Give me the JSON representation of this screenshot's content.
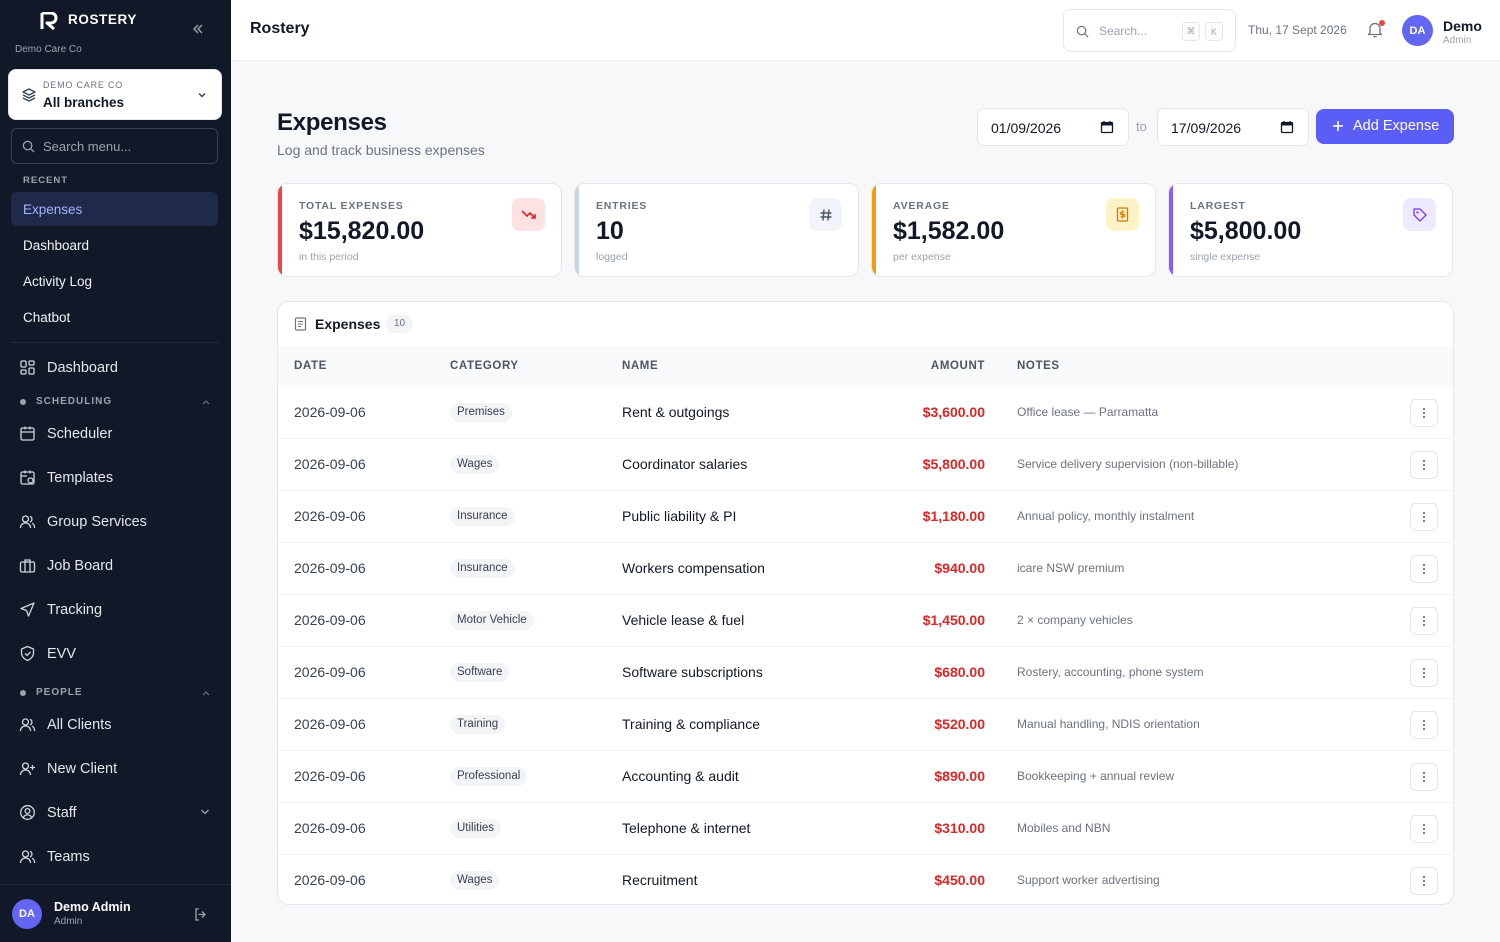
{
  "sidebar": {
    "brand": "ROSTERY",
    "org_sub": "Demo Care Co",
    "org_select": {
      "label": "DEMO CARE CO",
      "value": "All branches"
    },
    "search_placeholder": "Search menu...",
    "recent_label": "RECENT",
    "recent": [
      "Expenses",
      "Dashboard",
      "Activity Log",
      "Chatbot"
    ],
    "nav": {
      "dashboard": "Dashboard",
      "scheduling_label": "SCHEDULING",
      "scheduler": "Scheduler",
      "templates": "Templates",
      "group_services": "Group Services",
      "job_board": "Job Board",
      "tracking": "Tracking",
      "evv": "EVV",
      "people_label": "PEOPLE",
      "all_clients": "All Clients",
      "new_client": "New Client",
      "staff": "Staff",
      "teams": "Teams"
    },
    "user": {
      "initials": "DA",
      "name": "Demo Admin",
      "role": "Admin"
    }
  },
  "topbar": {
    "title": "Rostery",
    "search_placeholder": "Search...",
    "kbd": [
      "⌘",
      "K"
    ],
    "date": "Thu, 17 Sept 2026",
    "user": {
      "initials": "DA",
      "name": "Demo",
      "role": "Admin"
    }
  },
  "page": {
    "title": "Expenses",
    "subtitle": "Log and track business expenses",
    "date_from": "01/09/2026",
    "to_label": "to",
    "date_to": "17/09/2026",
    "add_button": "Add Expense"
  },
  "stats": [
    {
      "label": "TOTAL EXPENSES",
      "value": "$15,820.00",
      "sub": "in this period",
      "accent": "#ef4444",
      "icon": "trend-down-icon"
    },
    {
      "label": "ENTRIES",
      "value": "10",
      "sub": "logged",
      "accent": "#cbd5e1",
      "icon": "hash-icon"
    },
    {
      "label": "AVERAGE",
      "value": "$1,582.00",
      "sub": "per expense",
      "accent": "#f59e0b",
      "icon": "receipt-icon"
    },
    {
      "label": "LARGEST",
      "value": "$5,800.00",
      "sub": "single expense",
      "accent": "#8b5cf6",
      "icon": "tag-icon"
    }
  ],
  "table": {
    "title": "Expenses",
    "count": "10",
    "columns": {
      "date": "DATE",
      "category": "CATEGORY",
      "name": "NAME",
      "amount": "AMOUNT",
      "notes": "NOTES"
    },
    "rows": [
      {
        "date": "2026-09-06",
        "category": "Premises",
        "name": "Rent & outgoings",
        "amount": "$3,600.00",
        "notes": "Office lease — Parramatta"
      },
      {
        "date": "2026-09-06",
        "category": "Wages",
        "name": "Coordinator salaries",
        "amount": "$5,800.00",
        "notes": "Service delivery supervision (non-billable)"
      },
      {
        "date": "2026-09-06",
        "category": "Insurance",
        "name": "Public liability & PI",
        "amount": "$1,180.00",
        "notes": "Annual policy, monthly instalment"
      },
      {
        "date": "2026-09-06",
        "category": "Insurance",
        "name": "Workers compensation",
        "amount": "$940.00",
        "notes": "icare NSW premium"
      },
      {
        "date": "2026-09-06",
        "category": "Motor Vehicle",
        "name": "Vehicle lease & fuel",
        "amount": "$1,450.00",
        "notes": "2 × company vehicles"
      },
      {
        "date": "2026-09-06",
        "category": "Software",
        "name": "Software subscriptions",
        "amount": "$680.00",
        "notes": "Rostery, accounting, phone system"
      },
      {
        "date": "2026-09-06",
        "category": "Training",
        "name": "Training & compliance",
        "amount": "$520.00",
        "notes": "Manual handling, NDIS orientation"
      },
      {
        "date": "2026-09-06",
        "category": "Professional",
        "name": "Accounting & audit",
        "amount": "$890.00",
        "notes": "Bookkeeping + annual review"
      },
      {
        "date": "2026-09-06",
        "category": "Utilities",
        "name": "Telephone & internet",
        "amount": "$310.00",
        "notes": "Mobiles and NBN"
      },
      {
        "date": "2026-09-06",
        "category": "Wages",
        "name": "Recruitment",
        "amount": "$450.00",
        "notes": "Support worker advertising"
      }
    ]
  }
}
